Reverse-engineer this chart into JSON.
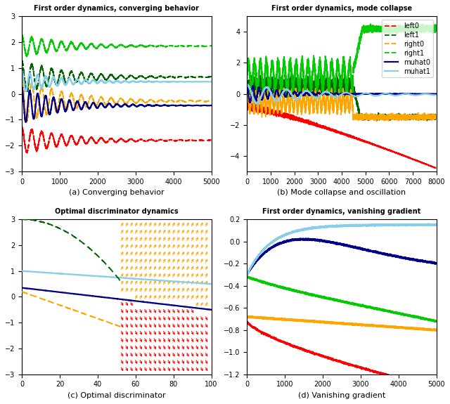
{
  "title_a": "First order dynamics, converging behavior",
  "title_b": "First order dynamics, mode collapse",
  "title_c": "Optimal discriminator dynamics",
  "title_d": "First order dynamics, vanishing gradient",
  "caption_a": "(a) Converging behavior",
  "caption_b": "(b) Mode collapse and oscillation",
  "caption_c": "(c) Optimal discriminator",
  "caption_d": "(d) Vanishing gradient",
  "legend_labels": [
    "left0",
    "left1",
    "right0",
    "right1",
    "muhat0",
    "muhat1"
  ],
  "colors": {
    "left0": "#FF0000",
    "left1": "#006400",
    "right0": "#FFA500",
    "right1": "#00CC00",
    "muhat0": "#00008B",
    "muhat1": "#87CEEB"
  },
  "ylim_a": [
    -3,
    3
  ],
  "xlim_a": [
    0,
    5000
  ],
  "ylim_b": [
    -5,
    5
  ],
  "xlim_b": [
    0,
    8000
  ],
  "ylim_c": [
    -3,
    3
  ],
  "xlim_c": [
    0,
    100
  ],
  "ylim_d": [
    -1.2,
    0.2
  ],
  "xlim_d": [
    0,
    5000
  ]
}
